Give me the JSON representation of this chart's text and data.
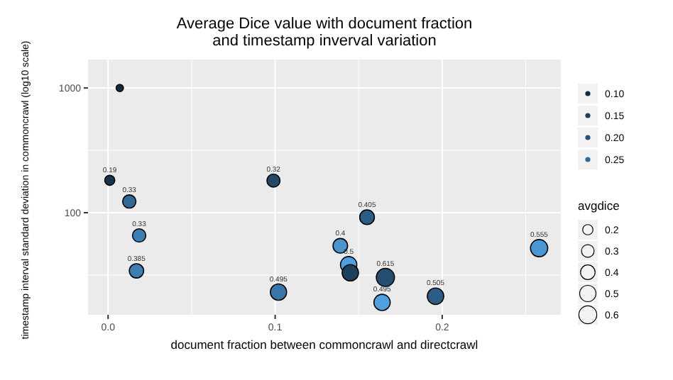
{
  "chart_data": {
    "type": "bubble",
    "title": "Average Dice value with document fraction\nand timestamp inverval variation",
    "xlabel": "document fraction between commoncrawl and directcrawl",
    "ylabel": "timestamp interval standard deviation in commoncrawl (log10 scale)",
    "legend_title": "avgdice",
    "log": "y",
    "grid": true,
    "marker": "circle",
    "xlim": [
      -0.012,
      0.271
    ],
    "xticks": [
      {
        "value": 0,
        "label": "0.0"
      },
      0.1,
      0.2
    ],
    "ylim": [
      15.2,
      1690
    ],
    "yticks": [
      100,
      1000
    ],
    "size_legend": [
      0.2,
      0.3,
      0.4,
      0.5,
      0.6
    ],
    "annotations": [
      "0.10",
      "0.15",
      "0.20",
      "0.25"
    ],
    "x": [
      0.007,
      0.001,
      0.0127,
      0.0186,
      0.017,
      0.099,
      0.155,
      0.139,
      0.144,
      0.145,
      0.166,
      0.102,
      0.164,
      0.196,
      0.258
    ],
    "values": [
      1000,
      182,
      123,
      65.7,
      34.2,
      181,
      92,
      54.3,
      38.3,
      33,
      30.3,
      23.1,
      19.1,
      21.4,
      52
    ],
    "sizes": [
      0.1,
      0.19,
      0.33,
      0.33,
      0.385,
      0.32,
      0.405,
      0.4,
      0.5,
      0.5,
      0.615,
      0.495,
      0.495,
      0.505,
      0.555
    ],
    "colors": [
      "#132b43",
      "#17334e",
      "#326a97",
      "#3d7fb4",
      "#3d7fb4",
      "#22486a",
      "#2c5d87",
      "#4794d0",
      "#4ea0e1",
      "#1d405f",
      "#244d70",
      "#3976a8",
      "#4ea0e1",
      "#2c5d87",
      "#4998d5"
    ],
    "value_labels": [
      null,
      "0.19",
      "0.33",
      "0.33",
      "0.385",
      "0.32",
      "0.405",
      "0.4",
      "0.5",
      null,
      "0.615",
      "0.495",
      "0.495",
      "0.505",
      "0.555"
    ]
  }
}
